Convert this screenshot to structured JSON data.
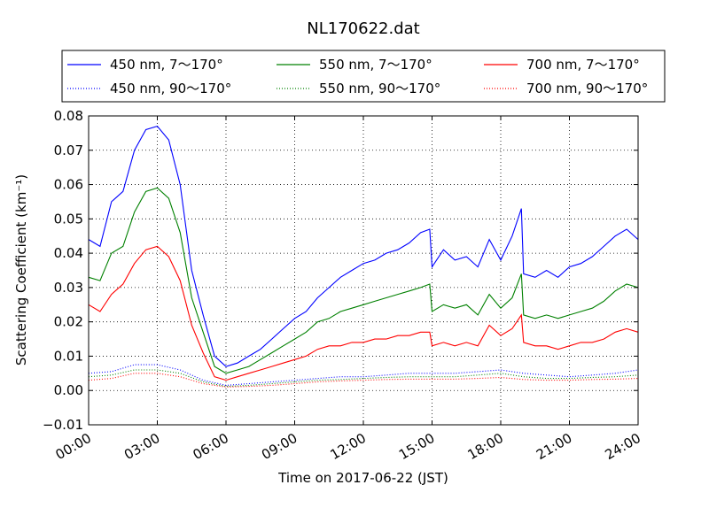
{
  "chart_data": {
    "type": "line",
    "title": "NL170622.dat",
    "xlabel": "Time on 2017-06-22 (JST)",
    "ylabel": "Scattering Coefficient (km⁻¹)",
    "x_unit": "hour",
    "xlim": [
      0,
      24
    ],
    "ylim": [
      -0.01,
      0.08
    ],
    "x_ticks": [
      0,
      3,
      6,
      9,
      12,
      15,
      18,
      21,
      24
    ],
    "x_tick_labels": [
      "00:00",
      "03:00",
      "06:00",
      "09:00",
      "12:00",
      "15:00",
      "18:00",
      "21:00",
      "24:00"
    ],
    "y_ticks": [
      -0.01,
      0.0,
      0.01,
      0.02,
      0.03,
      0.04,
      0.05,
      0.06,
      0.07,
      0.08
    ],
    "y_tick_labels": [
      "−0.01",
      "0.00",
      "0.01",
      "0.02",
      "0.03",
      "0.04",
      "0.05",
      "0.06",
      "0.07",
      "0.08"
    ],
    "grid": true,
    "legend_position": "top, above plot",
    "series": [
      {
        "name": "450 nm, 7～170°",
        "color": "#0000ff",
        "style": "solid",
        "x": [
          0,
          0.5,
          1,
          1.5,
          2,
          2.5,
          3,
          3.5,
          4,
          4.5,
          5,
          5.5,
          6,
          6.5,
          7,
          7.5,
          8,
          8.5,
          9,
          9.5,
          10,
          10.5,
          11,
          11.5,
          12,
          12.5,
          13,
          13.5,
          14,
          14.5,
          14.9,
          15,
          15.5,
          16,
          16.5,
          17,
          17.5,
          18,
          18.5,
          18.9,
          19,
          19.5,
          20,
          20.5,
          21,
          21.5,
          22,
          22.5,
          23,
          23.5,
          24
        ],
        "y": [
          0.044,
          0.042,
          0.055,
          0.058,
          0.07,
          0.076,
          0.077,
          0.073,
          0.06,
          0.035,
          0.022,
          0.01,
          0.007,
          0.008,
          0.01,
          0.012,
          0.015,
          0.018,
          0.021,
          0.023,
          0.027,
          0.03,
          0.033,
          0.035,
          0.037,
          0.038,
          0.04,
          0.041,
          0.043,
          0.046,
          0.047,
          0.036,
          0.041,
          0.038,
          0.039,
          0.036,
          0.044,
          0.038,
          0.045,
          0.053,
          0.034,
          0.033,
          0.035,
          0.033,
          0.036,
          0.037,
          0.039,
          0.042,
          0.045,
          0.047,
          0.044
        ]
      },
      {
        "name": "550 nm, 7～170°",
        "color": "#008000",
        "style": "solid",
        "x": [
          0,
          0.5,
          1,
          1.5,
          2,
          2.5,
          3,
          3.5,
          4,
          4.5,
          5,
          5.5,
          6,
          6.5,
          7,
          7.5,
          8,
          8.5,
          9,
          9.5,
          10,
          10.5,
          11,
          11.5,
          12,
          12.5,
          13,
          13.5,
          14,
          14.5,
          14.9,
          15,
          15.5,
          16,
          16.5,
          17,
          17.5,
          18,
          18.5,
          18.9,
          19,
          19.5,
          20,
          20.5,
          21,
          21.5,
          22,
          22.5,
          23,
          23.5,
          24
        ],
        "y": [
          0.033,
          0.032,
          0.04,
          0.042,
          0.052,
          0.058,
          0.059,
          0.056,
          0.046,
          0.027,
          0.017,
          0.007,
          0.005,
          0.006,
          0.007,
          0.009,
          0.011,
          0.013,
          0.015,
          0.017,
          0.02,
          0.021,
          0.023,
          0.024,
          0.025,
          0.026,
          0.027,
          0.028,
          0.029,
          0.03,
          0.031,
          0.023,
          0.025,
          0.024,
          0.025,
          0.022,
          0.028,
          0.024,
          0.027,
          0.034,
          0.022,
          0.021,
          0.022,
          0.021,
          0.022,
          0.023,
          0.024,
          0.026,
          0.029,
          0.031,
          0.03
        ]
      },
      {
        "name": "700 nm, 7～170°",
        "color": "#ff0000",
        "style": "solid",
        "x": [
          0,
          0.5,
          1,
          1.5,
          2,
          2.5,
          3,
          3.5,
          4,
          4.5,
          5,
          5.5,
          6,
          6.5,
          7,
          7.5,
          8,
          8.5,
          9,
          9.5,
          10,
          10.5,
          11,
          11.5,
          12,
          12.5,
          13,
          13.5,
          14,
          14.5,
          14.9,
          15,
          15.5,
          16,
          16.5,
          17,
          17.5,
          18,
          18.5,
          18.9,
          19,
          19.5,
          20,
          20.5,
          21,
          21.5,
          22,
          22.5,
          23,
          23.5,
          24
        ],
        "y": [
          0.025,
          0.023,
          0.028,
          0.031,
          0.037,
          0.041,
          0.042,
          0.039,
          0.032,
          0.019,
          0.011,
          0.004,
          0.003,
          0.004,
          0.005,
          0.006,
          0.007,
          0.008,
          0.009,
          0.01,
          0.012,
          0.013,
          0.013,
          0.014,
          0.014,
          0.015,
          0.015,
          0.016,
          0.016,
          0.017,
          0.017,
          0.013,
          0.014,
          0.013,
          0.014,
          0.013,
          0.019,
          0.016,
          0.018,
          0.022,
          0.014,
          0.013,
          0.013,
          0.012,
          0.013,
          0.014,
          0.014,
          0.015,
          0.017,
          0.018,
          0.017
        ]
      },
      {
        "name": "450 nm, 90～170°",
        "color": "#0000ff",
        "style": "dotted",
        "x": [
          0,
          1,
          2,
          3,
          4,
          5,
          6,
          7,
          8,
          9,
          10,
          11,
          12,
          13,
          14,
          15,
          16,
          17,
          18,
          19,
          20,
          21,
          22,
          23,
          24
        ],
        "y": [
          0.005,
          0.0055,
          0.0075,
          0.0075,
          0.006,
          0.003,
          0.0015,
          0.002,
          0.0025,
          0.003,
          0.0035,
          0.004,
          0.004,
          0.0045,
          0.005,
          0.005,
          0.005,
          0.0055,
          0.006,
          0.005,
          0.0045,
          0.004,
          0.0045,
          0.005,
          0.006
        ]
      },
      {
        "name": "550 nm, 90～170°",
        "color": "#008000",
        "style": "dotted",
        "x": [
          0,
          1,
          2,
          3,
          4,
          5,
          6,
          7,
          8,
          9,
          10,
          11,
          12,
          13,
          14,
          15,
          16,
          17,
          18,
          19,
          20,
          21,
          22,
          23,
          24
        ],
        "y": [
          0.004,
          0.0045,
          0.006,
          0.006,
          0.005,
          0.0025,
          0.0012,
          0.0015,
          0.002,
          0.0025,
          0.003,
          0.0032,
          0.0035,
          0.0038,
          0.004,
          0.004,
          0.004,
          0.0045,
          0.005,
          0.004,
          0.0035,
          0.0035,
          0.0038,
          0.004,
          0.0045
        ]
      },
      {
        "name": "700 nm, 90～170°",
        "color": "#ff0000",
        "style": "dotted",
        "x": [
          0,
          1,
          2,
          3,
          4,
          5,
          6,
          7,
          8,
          9,
          10,
          11,
          12,
          13,
          14,
          15,
          16,
          17,
          18,
          19,
          20,
          21,
          22,
          23,
          24
        ],
        "y": [
          0.003,
          0.0035,
          0.005,
          0.005,
          0.004,
          0.002,
          0.001,
          0.0012,
          0.0015,
          0.002,
          0.0025,
          0.0028,
          0.003,
          0.0032,
          0.0033,
          0.0033,
          0.0033,
          0.0035,
          0.0038,
          0.0032,
          0.003,
          0.003,
          0.0032,
          0.0033,
          0.0035
        ]
      }
    ]
  }
}
